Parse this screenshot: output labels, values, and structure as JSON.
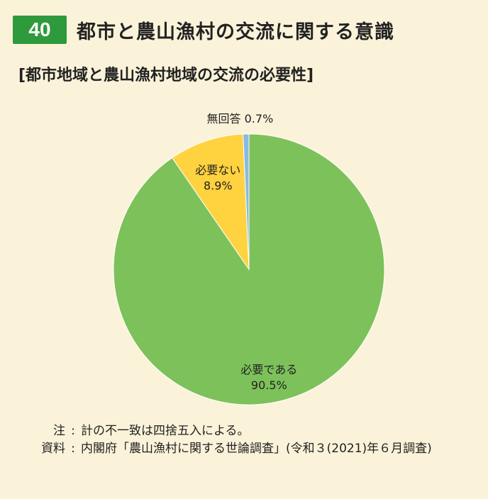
{
  "figure": {
    "number": "40",
    "title": "都市と農山漁村の交流に関する意識",
    "subtitle": "[都市地域と農山漁村地域の交流の必要性]"
  },
  "chart_data": {
    "type": "pie",
    "start": "12 o'clock",
    "direction": "clockwise",
    "slices": [
      {
        "label": "必要である",
        "value": 90.5,
        "value_label": "90.5%",
        "color": "#7dc15a"
      },
      {
        "label": "必要ない",
        "value": 8.9,
        "value_label": "8.9%",
        "color": "#ffd23f"
      },
      {
        "label": "無回答",
        "value": 0.7,
        "value_label": "0.7%",
        "color": "#8ab9e3"
      }
    ],
    "legend": "none"
  },
  "notes": [
    {
      "label": "注",
      "text": "計の不一致は四捨五入による。"
    },
    {
      "label": "資料",
      "text": "内閣府「農山漁村に関する世論調査」(令和３(2021)年６月調査)"
    }
  ]
}
